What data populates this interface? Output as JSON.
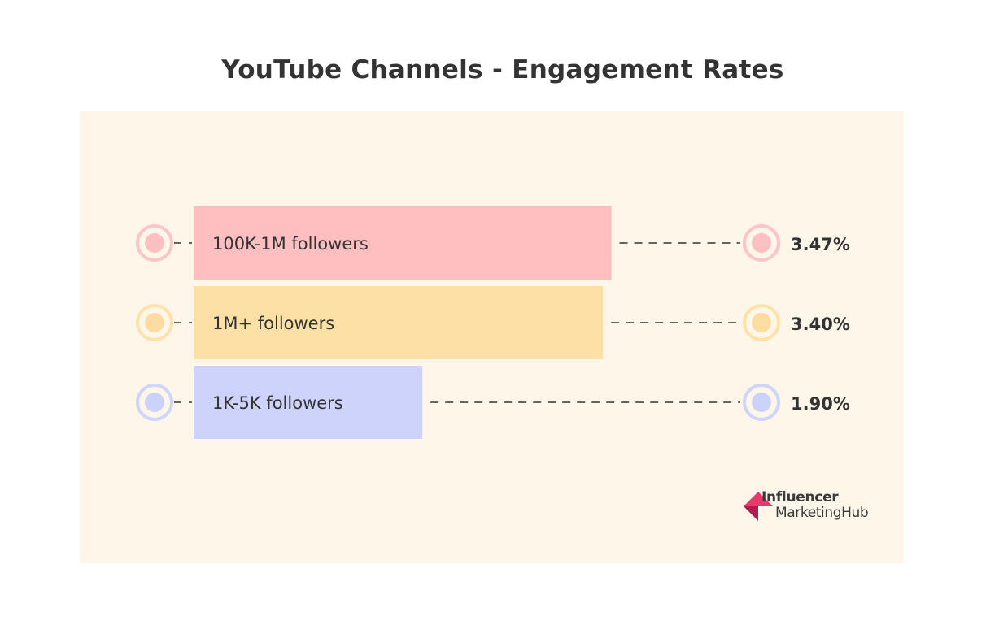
{
  "chart_data": {
    "type": "bar",
    "orientation": "horizontal",
    "title": "YouTube Channels - Engagement Rates",
    "categories": [
      "100K-1M followers",
      "1M+ followers",
      "1K-5K followers"
    ],
    "values": [
      3.47,
      3.4,
      1.9
    ],
    "value_labels": [
      "3.47%",
      "3.40%",
      "1.90%"
    ],
    "bar_colors": [
      "#ffbfc1",
      "#fde0a5",
      "#cdd3fb"
    ],
    "marker_ring_colors": [
      "#fcc5c7",
      "#fde3ab",
      "#cfd5fb"
    ],
    "marker_dot_colors": [
      "#fcc0c2",
      "#fddca2",
      "#cbd2fb"
    ],
    "panel_color": "#fef6e8",
    "text_color": "#333333",
    "grid": false,
    "legend": "none"
  },
  "logo": {
    "line1": "Influencer",
    "line2": "MarketingHub",
    "colors": [
      "#e8386d",
      "#b11d4e"
    ]
  }
}
